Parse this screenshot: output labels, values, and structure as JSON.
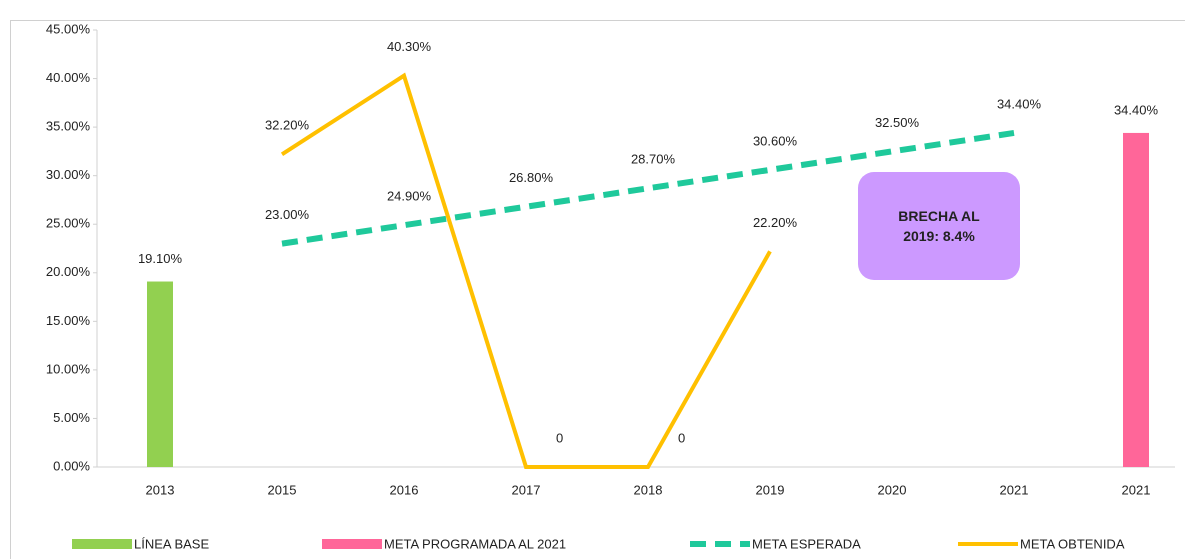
{
  "chart_data": {
    "type": "line",
    "categories": [
      "2013",
      "2015",
      "2016",
      "2017",
      "2018",
      "2019",
      "2020",
      "2021",
      "2021"
    ],
    "ylim": [
      0,
      45
    ],
    "yticks": [
      {
        "value": 0,
        "label": "0.00%"
      },
      {
        "value": 5,
        "label": "5.00%"
      },
      {
        "value": 10,
        "label": "10.00%"
      },
      {
        "value": 15,
        "label": "15.00%"
      },
      {
        "value": 20,
        "label": "20.00%"
      },
      {
        "value": 25,
        "label": "25.00%"
      },
      {
        "value": 30,
        "label": "30.00%"
      },
      {
        "value": 35,
        "label": "35.00%"
      },
      {
        "value": 40,
        "label": "40.00%"
      },
      {
        "value": 45,
        "label": "45.00%"
      }
    ],
    "series": [
      {
        "name": "LÍNEA BASE",
        "kind": "bar",
        "color": "#92d050",
        "values": [
          19.1,
          null,
          null,
          null,
          null,
          null,
          null,
          null,
          null
        ],
        "value_labels": [
          "19.10%",
          null,
          null,
          null,
          null,
          null,
          null,
          null,
          null
        ]
      },
      {
        "name": "META PROGRAMADA AL 2021",
        "kind": "bar",
        "color": "#ff6699",
        "values": [
          null,
          null,
          null,
          null,
          null,
          null,
          null,
          null,
          34.4
        ],
        "value_labels": [
          null,
          null,
          null,
          null,
          null,
          null,
          null,
          null,
          "34.40%"
        ]
      },
      {
        "name": "META ESPERADA",
        "kind": "dashed",
        "color": "#1fc99b",
        "values": [
          null,
          23.0,
          24.9,
          26.8,
          28.7,
          30.6,
          32.5,
          34.4,
          null
        ],
        "value_labels": [
          null,
          "23.00%",
          "24.90%",
          "26.80%",
          "28.70%",
          "30.60%",
          "32.50%",
          "34.40%",
          null
        ]
      },
      {
        "name": "META OBTENIDA",
        "kind": "line",
        "color": "#ffc000",
        "values": [
          null,
          32.2,
          40.3,
          0,
          0,
          22.2,
          null,
          null,
          null
        ],
        "value_labels": [
          null,
          "32.20%",
          "40.30%",
          "0",
          "0",
          "22.20%",
          null,
          null,
          null
        ]
      }
    ],
    "annotation": "BRECHA AL 2019: 8.4%"
  }
}
